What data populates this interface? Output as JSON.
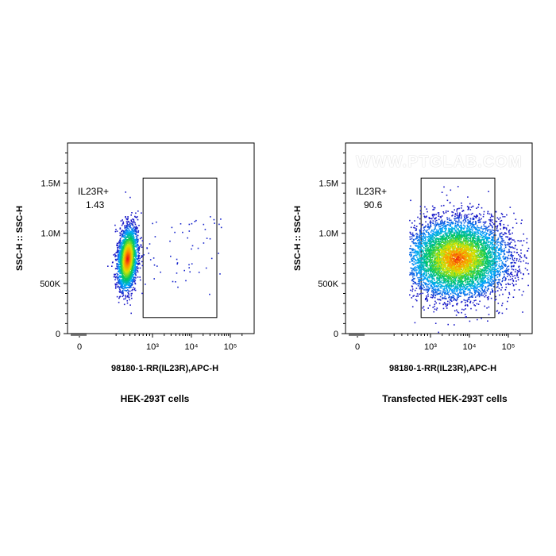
{
  "watermark": "WWW.PTGLAB.COM",
  "chart_data": [
    {
      "type": "scatter",
      "caption": "HEK-293T cells",
      "xlabel": "98180-1-RR(IL23R),APC-H",
      "ylabel": "SSC-H :: SSC-H",
      "x_scale": "biexponential",
      "x_ticks": [
        "0",
        "10³",
        "10⁴",
        "10⁵"
      ],
      "y_ticks": [
        "0",
        "500K",
        "1.0M",
        "1.5M"
      ],
      "ylim": [
        0,
        1900000
      ],
      "gate": {
        "name": "IL23R+",
        "percent": "1.43",
        "x_range": [
          700,
          45000
        ],
        "y_range": [
          160000,
          1550000
        ]
      },
      "population": {
        "x_center": 300,
        "y_center": 780000,
        "y_spread": 210000,
        "note_positive_events_sparse": true
      }
    },
    {
      "type": "scatter",
      "caption": "Transfected HEK-293T cells",
      "xlabel": "98180-1-RR(IL23R),APC-H",
      "ylabel": "SSC-H :: SSC-H",
      "x_scale": "biexponential",
      "x_ticks": [
        "0",
        "10³",
        "10⁴",
        "10⁵"
      ],
      "y_ticks": [
        "0",
        "500K",
        "1.0M",
        "1.5M"
      ],
      "ylim": [
        0,
        1900000
      ],
      "gate": {
        "name": "IL23R+",
        "percent": "90.6",
        "x_range": [
          700,
          45000
        ],
        "y_range": [
          160000,
          1550000
        ]
      },
      "population": {
        "x_center": 3000,
        "y_center": 750000,
        "y_spread": 230000
      }
    }
  ]
}
